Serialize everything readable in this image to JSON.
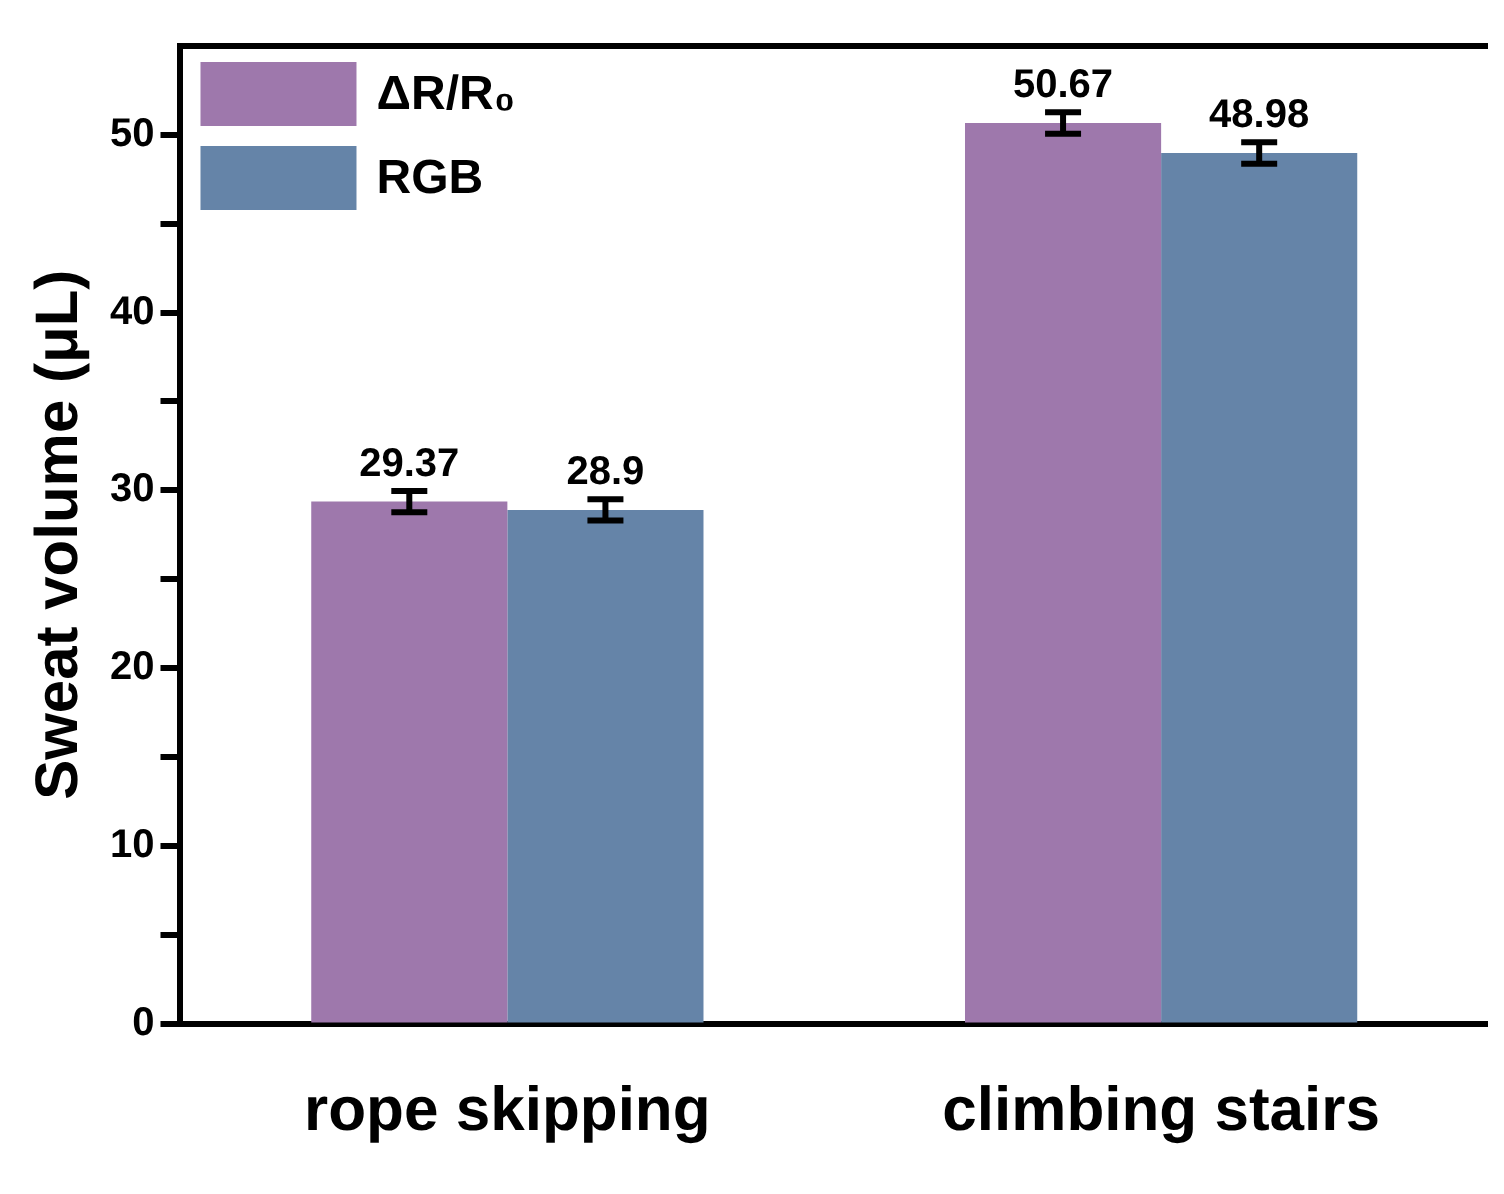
{
  "chart_data": {
    "type": "bar",
    "ylabel": "Sweat volume (μL)",
    "categories": [
      "rope skipping",
      "climbing stairs"
    ],
    "series": [
      {
        "name": "ΔR/R₀",
        "color": "#9e78ac",
        "values": [
          29.37,
          50.67
        ],
        "errors": [
          0.6,
          0.6
        ]
      },
      {
        "name": "RGB",
        "color": "#6584a8",
        "values": [
          28.9,
          48.98
        ],
        "errors": [
          0.6,
          0.6
        ]
      }
    ],
    "ylim": [
      0,
      55
    ],
    "yticks": [
      0,
      {
        "value": 5,
        "label": null
      },
      10,
      {
        "value": 15,
        "label": null
      },
      20,
      {
        "value": 25,
        "label": null
      },
      30,
      {
        "value": 35,
        "label": null
      },
      40,
      {
        "value": 45,
        "label": null
      },
      50
    ],
    "data_labels": true,
    "legend": "top left",
    "grid": false
  }
}
